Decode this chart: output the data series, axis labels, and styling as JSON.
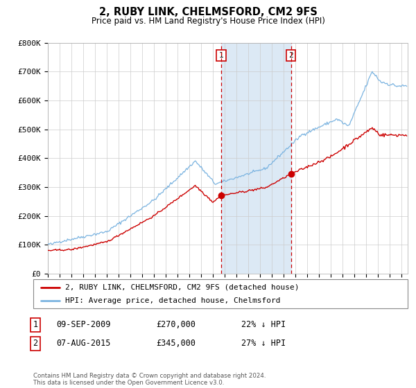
{
  "title": "2, RUBY LINK, CHELMSFORD, CM2 9FS",
  "subtitle": "Price paid vs. HM Land Registry's House Price Index (HPI)",
  "legend_line1": "2, RUBY LINK, CHELMSFORD, CM2 9FS (detached house)",
  "legend_line2": "HPI: Average price, detached house, Chelmsford",
  "transaction1_date": "09-SEP-2009",
  "transaction1_price": 270000,
  "transaction1_label": "22% ↓ HPI",
  "transaction1_year": 2009.69,
  "transaction2_date": "07-AUG-2015",
  "transaction2_price": 345000,
  "transaction2_label": "27% ↓ HPI",
  "transaction2_year": 2015.6,
  "hpi_color": "#7ab3e0",
  "property_color": "#cc0000",
  "vline_color": "#cc0000",
  "shade_color": "#dce9f5",
  "dot_color": "#cc0000",
  "grid_color": "#cccccc",
  "bg_color": "#ffffff",
  "ymin": 0,
  "ymax": 800000,
  "xmin": 1995.0,
  "xmax": 2025.5,
  "footer": "Contains HM Land Registry data © Crown copyright and database right 2024.\nThis data is licensed under the Open Government Licence v3.0."
}
